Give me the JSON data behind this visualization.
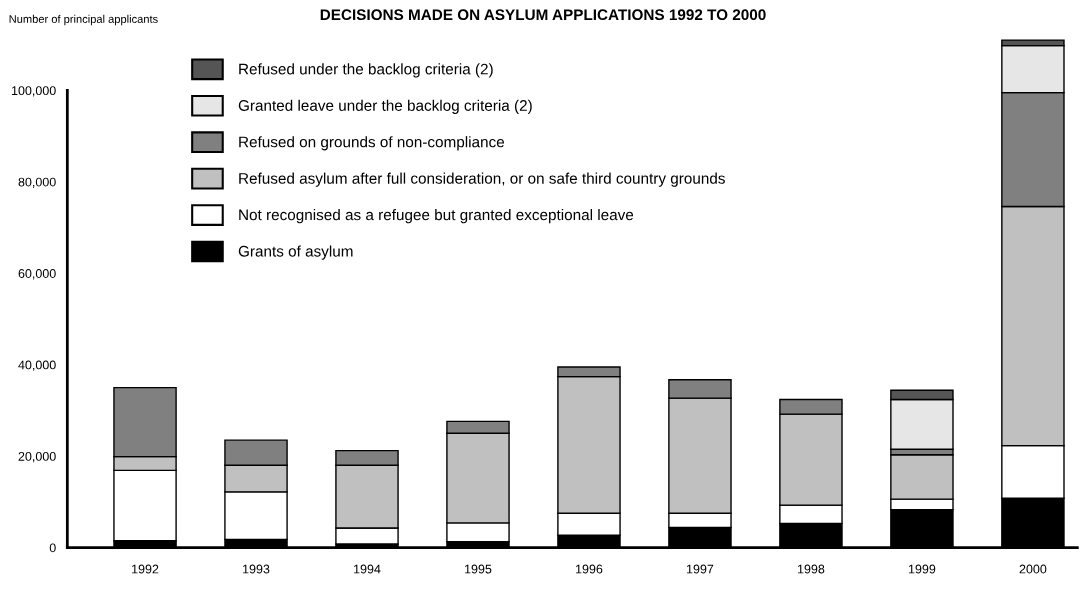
{
  "chart_data": {
    "type": "bar",
    "title": "DECISIONS MADE ON ASYLUM APPLICATIONS 1992 TO 2000",
    "ylabel": "Number of principal applicants",
    "categories": [
      "1992",
      "1993",
      "1994",
      "1995",
      "1996",
      "1997",
      "1998",
      "1999",
      "2000"
    ],
    "stacked": true,
    "legend": "top left",
    "grid": false,
    "ylim": [
      0,
      112000
    ],
    "yticks": [
      {
        "value": 0,
        "label": "0"
      },
      {
        "value": 20000,
        "label": "20,000"
      },
      {
        "value": 40000,
        "label": "40,000"
      },
      {
        "value": 60000,
        "label": "60,000"
      },
      {
        "value": 80000,
        "label": "80,000"
      },
      {
        "value": 100000,
        "label": "100,000"
      }
    ],
    "series": [
      {
        "name": "Grants of asylum",
        "color": "#000000",
        "values": [
          1500,
          1800,
          800,
          1300,
          2700,
          4400,
          5300,
          8300,
          10800
        ]
      },
      {
        "name": "Not recognised as a refugee but granted exceptional leave",
        "color": "#ffffff",
        "values": [
          15400,
          10400,
          3500,
          4100,
          4800,
          3100,
          4000,
          2300,
          11500
        ]
      },
      {
        "name": "Refused asylum after full consideration, or on safe third country grounds",
        "color": "#c0c0c0",
        "values": [
          3000,
          5800,
          13700,
          19600,
          29900,
          25200,
          19900,
          9700,
          52300
        ]
      },
      {
        "name": "Refused on grounds of non-compliance",
        "color": "#808080",
        "values": [
          15100,
          5500,
          3200,
          2600,
          2100,
          4000,
          3200,
          1200,
          24900
        ]
      },
      {
        "name": "Granted leave under the backlog criteria (2)",
        "color": "#e6e6e6",
        "values": [
          null,
          null,
          null,
          null,
          null,
          null,
          null,
          10900,
          10300
        ]
      },
      {
        "name": "Refused under the backlog criteria (2)",
        "color": "#555555",
        "values": [
          null,
          null,
          null,
          null,
          null,
          null,
          null,
          2000,
          1200
        ]
      }
    ]
  }
}
